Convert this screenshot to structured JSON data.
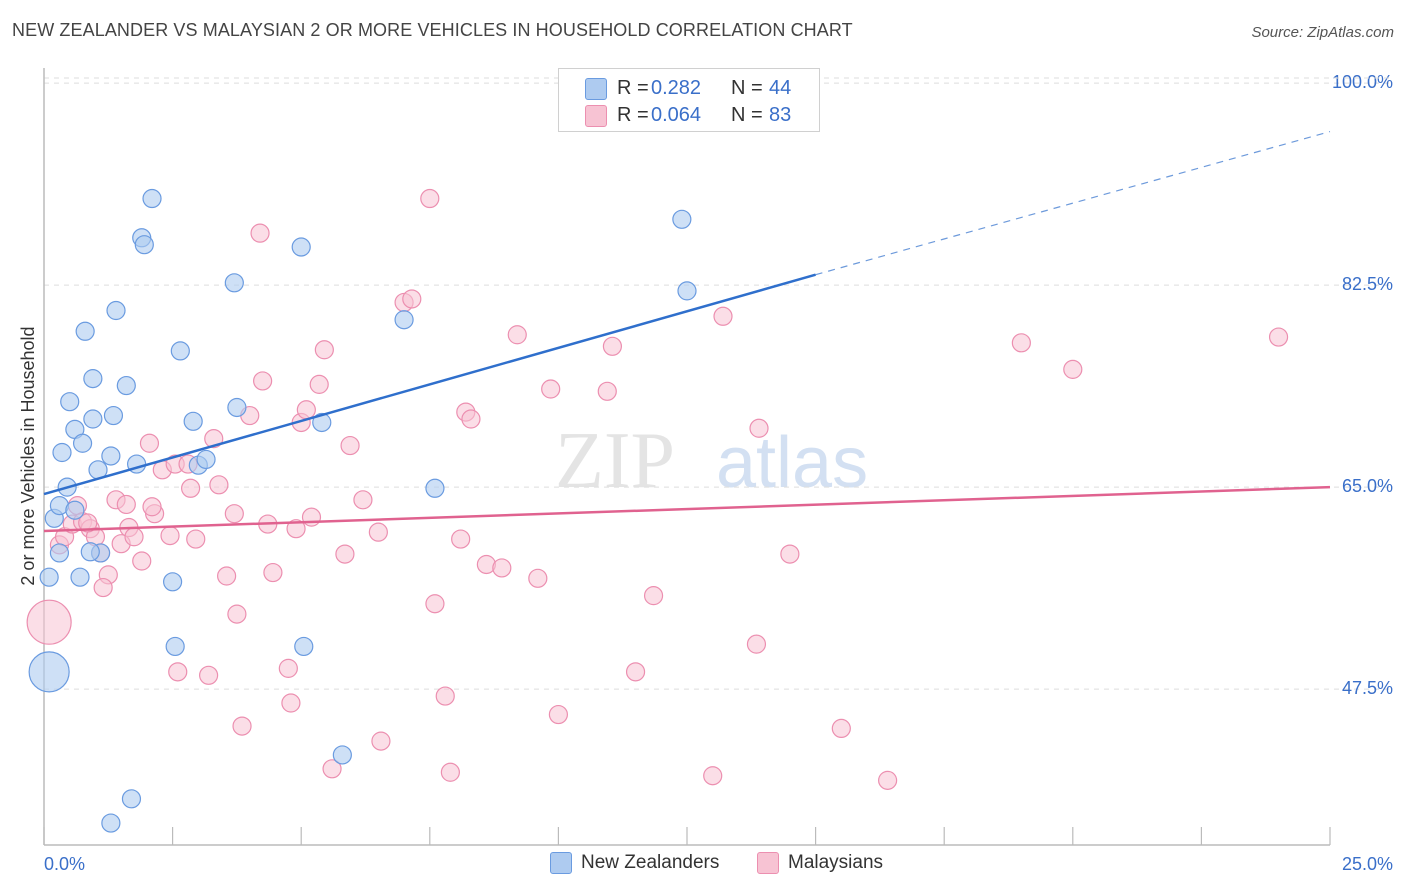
{
  "title": "NEW ZEALANDER VS MALAYSIAN 2 OR MORE VEHICLES IN HOUSEHOLD CORRELATION CHART",
  "source": "Source: ZipAtlas.com",
  "watermark": {
    "zip": "ZIP",
    "atlas": "atlas"
  },
  "legend": {
    "rows": [
      {
        "r_label": "R =",
        "r_value": "0.282",
        "n_label": "N =",
        "n_value": "44"
      },
      {
        "r_label": "R =",
        "r_value": "0.064",
        "n_label": "N =",
        "n_value": "83"
      }
    ]
  },
  "colors": {
    "blue_fill": "#aecbf0",
    "blue_stroke": "#6a9be0",
    "blue_line": "#2f6fcc",
    "pink_fill": "#f7c3d3",
    "pink_stroke": "#ec8fb0",
    "pink_line": "#e0628f",
    "axis_label": "#3a6fc9",
    "grid": "#dddddd"
  },
  "chart_data": {
    "type": "scatter",
    "title": "NEW ZEALANDER VS MALAYSIAN 2 OR MORE VEHICLES IN HOUSEHOLD CORRELATION CHART",
    "xlabel": "",
    "ylabel": "2 or more Vehicles in Household",
    "xlim": [
      0,
      25
    ],
    "ylim": [
      34,
      102
    ],
    "x_tick_labels": [
      "0.0%",
      "25.0%"
    ],
    "y_ticks": [
      47.5,
      65.0,
      82.5,
      100.0
    ],
    "y_tick_labels": [
      "47.5%",
      "65.0%",
      "82.5%",
      "100.0%"
    ],
    "grid": true,
    "legend_position": "top-center",
    "series": [
      {
        "name": "New Zealanders",
        "color": "#6a9be0",
        "r": 0.282,
        "n": 44,
        "trend": {
          "x": [
            0,
            15
          ],
          "y": [
            64.4,
            83.4
          ],
          "dashed_to": [
            25,
            95.8
          ]
        },
        "points": [
          [
            0.1,
            49
          ],
          [
            0.1,
            57.2
          ],
          [
            0.2,
            62.3
          ],
          [
            0.3,
            59.3
          ],
          [
            0.3,
            63.4
          ],
          [
            0.35,
            68.0
          ],
          [
            0.45,
            65.0
          ],
          [
            0.5,
            72.4
          ],
          [
            0.6,
            63.0
          ],
          [
            0.6,
            70.0
          ],
          [
            0.7,
            57.2
          ],
          [
            0.75,
            68.8
          ],
          [
            0.8,
            78.5
          ],
          [
            0.95,
            74.4
          ],
          [
            0.95,
            70.9
          ],
          [
            1.05,
            66.5
          ],
          [
            1.1,
            59.3
          ],
          [
            1.3,
            67.7
          ],
          [
            1.35,
            71.2
          ],
          [
            1.4,
            80.3
          ],
          [
            1.6,
            73.8
          ],
          [
            1.8,
            67.0
          ],
          [
            1.9,
            86.6
          ],
          [
            1.95,
            86.0
          ],
          [
            2.1,
            90.0
          ],
          [
            2.5,
            56.8
          ],
          [
            2.55,
            51.2
          ],
          [
            2.65,
            76.8
          ],
          [
            2.9,
            70.7
          ],
          [
            3.0,
            66.9
          ],
          [
            3.15,
            67.4
          ],
          [
            3.7,
            82.7
          ],
          [
            3.75,
            71.9
          ],
          [
            5.0,
            85.8
          ],
          [
            5.05,
            51.2
          ],
          [
            5.4,
            70.6
          ],
          [
            5.8,
            41.8
          ],
          [
            7.0,
            79.5
          ],
          [
            7.6,
            64.9
          ],
          [
            12.4,
            88.2
          ],
          [
            12.5,
            82.0
          ],
          [
            1.7,
            38.0
          ],
          [
            1.3,
            35.9
          ],
          [
            0.9,
            59.4
          ]
        ]
      },
      {
        "name": "Malaysians",
        "color": "#ec8fb0",
        "r": 0.064,
        "n": 83,
        "trend": {
          "x": [
            0,
            25
          ],
          "y": [
            61.2,
            65.0
          ]
        },
        "points": [
          [
            0.1,
            53.3
          ],
          [
            0.3,
            60.0
          ],
          [
            0.4,
            60.7
          ],
          [
            0.55,
            61.8
          ],
          [
            0.65,
            63.4
          ],
          [
            0.75,
            62.0
          ],
          [
            0.9,
            61.4
          ],
          [
            1.0,
            60.7
          ],
          [
            1.1,
            59.3
          ],
          [
            1.25,
            57.4
          ],
          [
            1.4,
            63.9
          ],
          [
            1.5,
            60.1
          ],
          [
            1.6,
            63.5
          ],
          [
            1.65,
            61.5
          ],
          [
            1.75,
            60.7
          ],
          [
            1.9,
            58.6
          ],
          [
            2.05,
            68.8
          ],
          [
            2.15,
            62.7
          ],
          [
            2.3,
            66.5
          ],
          [
            2.45,
            60.8
          ],
          [
            2.55,
            67.0
          ],
          [
            2.6,
            49.0
          ],
          [
            2.8,
            67.0
          ],
          [
            2.85,
            64.9
          ],
          [
            2.95,
            60.5
          ],
          [
            3.2,
            48.7
          ],
          [
            3.3,
            69.2
          ],
          [
            3.4,
            65.2
          ],
          [
            3.55,
            57.3
          ],
          [
            3.7,
            62.7
          ],
          [
            3.75,
            54.0
          ],
          [
            3.85,
            44.3
          ],
          [
            4.0,
            71.2
          ],
          [
            4.2,
            87.0
          ],
          [
            4.25,
            74.2
          ],
          [
            4.35,
            61.8
          ],
          [
            4.45,
            57.6
          ],
          [
            4.75,
            49.3
          ],
          [
            4.8,
            46.3
          ],
          [
            4.9,
            61.4
          ],
          [
            5.0,
            70.6
          ],
          [
            5.1,
            71.7
          ],
          [
            5.2,
            62.4
          ],
          [
            5.35,
            73.9
          ],
          [
            5.45,
            76.9
          ],
          [
            5.6,
            40.6
          ],
          [
            5.85,
            59.2
          ],
          [
            5.95,
            68.6
          ],
          [
            6.2,
            63.9
          ],
          [
            6.5,
            61.1
          ],
          [
            6.55,
            43.0
          ],
          [
            7.0,
            81.0
          ],
          [
            7.15,
            81.3
          ],
          [
            7.5,
            90.0
          ],
          [
            7.6,
            54.9
          ],
          [
            7.8,
            46.9
          ],
          [
            7.9,
            40.3
          ],
          [
            8.1,
            60.5
          ],
          [
            8.2,
            71.5
          ],
          [
            8.3,
            70.9
          ],
          [
            8.6,
            58.3
          ],
          [
            8.9,
            58.0
          ],
          [
            9.2,
            78.2
          ],
          [
            9.6,
            57.1
          ],
          [
            9.85,
            73.5
          ],
          [
            10.0,
            45.3
          ],
          [
            10.95,
            73.3
          ],
          [
            11.05,
            77.2
          ],
          [
            11.5,
            49.0
          ],
          [
            11.85,
            55.6
          ],
          [
            13.0,
            40.0
          ],
          [
            13.2,
            79.8
          ],
          [
            13.85,
            51.4
          ],
          [
            13.9,
            70.1
          ],
          [
            14.5,
            59.2
          ],
          [
            15.5,
            44.1
          ],
          [
            16.4,
            39.6
          ],
          [
            19.0,
            77.5
          ],
          [
            20.0,
            75.2
          ],
          [
            24.0,
            78.0
          ],
          [
            0.85,
            61.9
          ],
          [
            2.1,
            63.3
          ],
          [
            1.15,
            56.3
          ]
        ]
      }
    ]
  },
  "bottom_legend": [
    {
      "label": "New Zealanders"
    },
    {
      "label": "Malaysians"
    }
  ]
}
